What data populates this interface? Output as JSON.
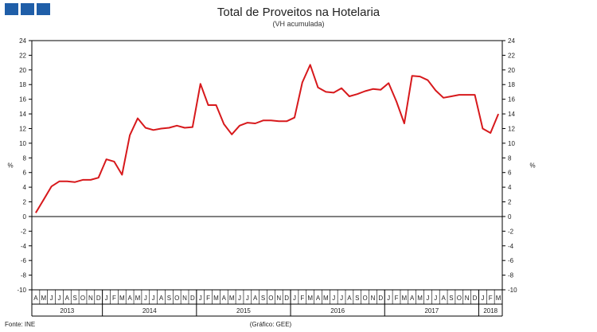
{
  "header": {
    "logo_icon": "ine-logo-squares",
    "logo_color": "#1f5ea8"
  },
  "footer": {
    "source": "Fonte: INE",
    "credit": "(Gráfico: GEE)"
  },
  "chart_data": {
    "type": "line",
    "title": "Total de Proveitos na Hotelaria",
    "subtitle": "(VH acumulada)",
    "ylabel_left": "%",
    "ylabel_right": "%",
    "ylim": [
      -10,
      24
    ],
    "yticks": [
      24,
      22,
      20,
      18,
      16,
      14,
      12,
      10,
      8,
      6,
      4,
      2,
      0,
      -2,
      -4,
      -6,
      -8,
      -10
    ],
    "grid": false,
    "line_color": "#d7191c",
    "x_months": [
      "A",
      "M",
      "J",
      "J",
      "A",
      "S",
      "O",
      "N",
      "D",
      "J",
      "F",
      "M",
      "A",
      "M",
      "J",
      "J",
      "A",
      "S",
      "O",
      "N",
      "D",
      "J",
      "F",
      "M",
      "A",
      "M",
      "J",
      "J",
      "A",
      "S",
      "O",
      "N",
      "D",
      "J",
      "F",
      "M",
      "A",
      "M",
      "J",
      "J",
      "A",
      "S",
      "O",
      "N",
      "D",
      "J",
      "F",
      "M",
      "A",
      "M",
      "J",
      "J",
      "A",
      "S",
      "O",
      "N",
      "D",
      "J",
      "F",
      "M"
    ],
    "x_years": [
      {
        "label": "2013",
        "start": 0,
        "end": 8
      },
      {
        "label": "2014",
        "start": 9,
        "end": 20
      },
      {
        "label": "2015",
        "start": 21,
        "end": 32
      },
      {
        "label": "2016",
        "start": 33,
        "end": 44
      },
      {
        "label": "2017",
        "start": 45,
        "end": 56
      },
      {
        "label": "2018",
        "start": 57,
        "end": 59
      }
    ],
    "series": [
      {
        "values": [
          0.5,
          2.3,
          4.1,
          4.8,
          4.8,
          4.7,
          5.0,
          5.0,
          5.3,
          7.8,
          7.5,
          5.7,
          11.1,
          13.4,
          12.1,
          11.8,
          12.0,
          12.1,
          12.4,
          12.1,
          12.2,
          18.1,
          15.2,
          15.2,
          12.6,
          11.2,
          12.4,
          12.8,
          12.7,
          13.1,
          13.1,
          13.0,
          13.0,
          13.5,
          18.3,
          20.7,
          17.6,
          17.0,
          16.9,
          17.5,
          16.4,
          16.7,
          17.1,
          17.4,
          17.3,
          18.2,
          15.7,
          12.7,
          19.2,
          19.1,
          18.6,
          17.2,
          16.2,
          16.4,
          16.6,
          16.6,
          16.6,
          12.0,
          11.4,
          14.0
        ]
      }
    ]
  }
}
